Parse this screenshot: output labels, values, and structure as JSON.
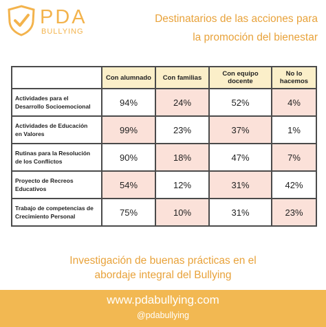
{
  "logo": {
    "brand": "PDA",
    "sub": "BULLYING"
  },
  "header": {
    "title_line1": "Destinatarios de las acciones para",
    "title_line2": "la promoción del bienestar"
  },
  "table": {
    "columns": [
      "Con alumnado",
      "Con familias",
      "Con equipo docente",
      "No lo hacemos"
    ],
    "rows": [
      {
        "label_line1": "Actividades para el",
        "label_line2": "Desarrollo Socioemocional",
        "values": [
          "94%",
          "24%",
          "52%",
          "4%"
        ]
      },
      {
        "label_line1": "Actividades de Educación",
        "label_line2": "en Valores",
        "values": [
          "99%",
          "23%",
          "37%",
          "1%"
        ]
      },
      {
        "label_line1": "Rutinas para la Resolución",
        "label_line2": "de los Conflictos",
        "values": [
          "90%",
          "18%",
          "47%",
          "7%"
        ]
      },
      {
        "label_line1": "Proyecto de Recreos",
        "label_line2": "Educativos",
        "values": [
          "54%",
          "12%",
          "31%",
          "42%"
        ]
      },
      {
        "label_line1": "Trabajo de competencias de",
        "label_line2": "Crecimiento Personal",
        "values": [
          "75%",
          "10%",
          "31%",
          "23%"
        ]
      }
    ]
  },
  "subtitle": {
    "line1": "Investigación de buenas prácticas en el",
    "line2": "abordaje integral del Bullying"
  },
  "footer": {
    "url": "www.pdabullying.com",
    "handle": "@pdabullying"
  },
  "colors": {
    "accent": "#e8a23a",
    "footer_bg": "#f2b852",
    "header_cell_bg": "#fbefc9",
    "highlight_cell_bg": "#fbe1d9"
  }
}
